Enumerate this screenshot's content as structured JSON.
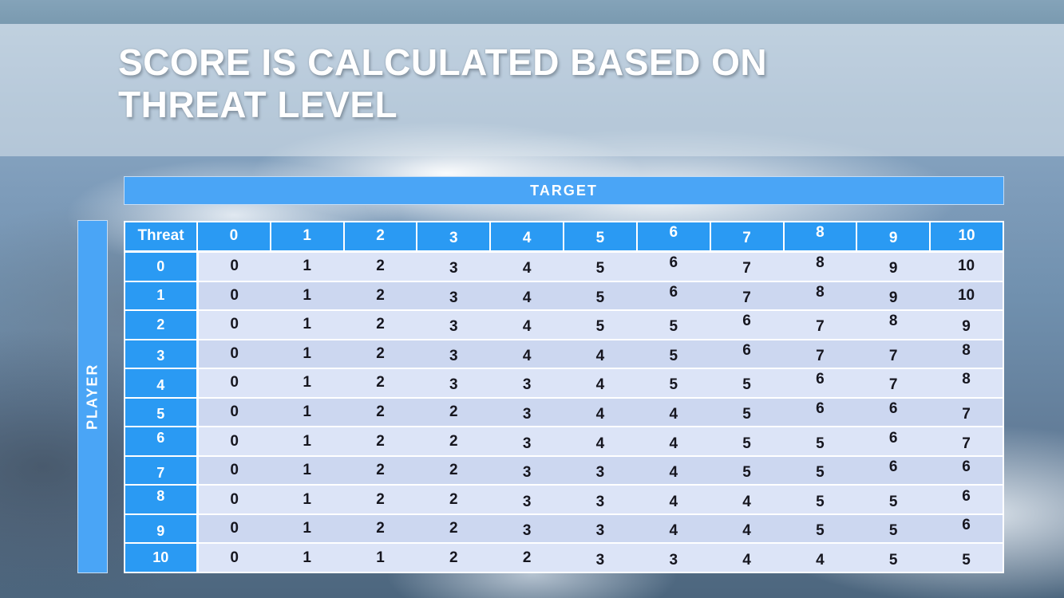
{
  "title": {
    "line1": "SCORE IS CALCULATED BASED ON",
    "line2": "THREAT LEVEL"
  },
  "chart_data": {
    "type": "table",
    "title": "SCORE IS CALCULATED BASED ON THREAT LEVEL",
    "column_axis_label": "TARGET",
    "row_axis_label": "PLAYER",
    "corner_header": "Threat",
    "columns": [
      "0",
      "1",
      "2",
      "3",
      "4",
      "5",
      "6",
      "7",
      "8",
      "9",
      "10"
    ],
    "row_headers": [
      "0",
      "1",
      "2",
      "3",
      "4",
      "5",
      "6",
      "7",
      "8",
      "9",
      "10"
    ],
    "matrix": [
      [
        0,
        1,
        2,
        3,
        4,
        5,
        6,
        7,
        8,
        9,
        10
      ],
      [
        0,
        1,
        2,
        3,
        4,
        5,
        6,
        7,
        8,
        9,
        10
      ],
      [
        0,
        1,
        2,
        3,
        4,
        5,
        5,
        6,
        7,
        8,
        9
      ],
      [
        0,
        1,
        2,
        3,
        4,
        4,
        5,
        6,
        7,
        7,
        8
      ],
      [
        0,
        1,
        2,
        3,
        3,
        4,
        5,
        5,
        6,
        7,
        8
      ],
      [
        0,
        1,
        2,
        2,
        3,
        4,
        4,
        5,
        6,
        6,
        7
      ],
      [
        0,
        1,
        2,
        2,
        3,
        4,
        4,
        5,
        5,
        6,
        7
      ],
      [
        0,
        1,
        2,
        2,
        3,
        3,
        4,
        5,
        5,
        6,
        6
      ],
      [
        0,
        1,
        2,
        2,
        3,
        3,
        4,
        4,
        5,
        5,
        6
      ],
      [
        0,
        1,
        2,
        2,
        3,
        3,
        4,
        4,
        5,
        5,
        6
      ],
      [
        0,
        1,
        1,
        2,
        2,
        3,
        3,
        4,
        4,
        5,
        5
      ]
    ]
  },
  "colors": {
    "accent_blue": "#2a9af3",
    "banner_blue": "#4aa5f6",
    "row_light": "#dce4f7",
    "row_alt": "#ccd7f0",
    "cell_text": "#16161f",
    "top_bar": "#7a9ab0",
    "border_white": "#ffffff"
  }
}
